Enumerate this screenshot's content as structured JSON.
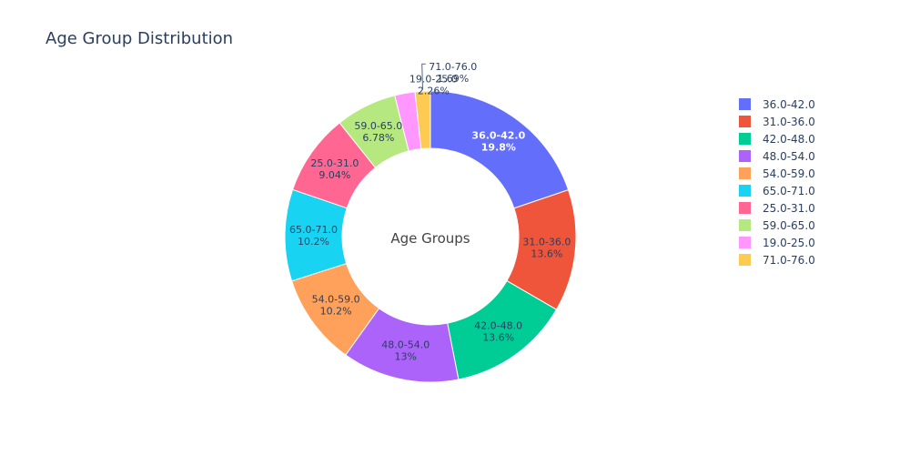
{
  "chart_data": {
    "type": "pie",
    "title": "Age Group Distribution",
    "hole_label": "Age Groups",
    "legend_position": "right",
    "slices": [
      {
        "label": "36.0-42.0",
        "percent_text": "19.8%",
        "value": 19.8,
        "color": "#636efa",
        "text_color": "light"
      },
      {
        "label": "31.0-36.0",
        "percent_text": "13.6%",
        "value": 13.56,
        "color": "#EF553B",
        "text_color": "dark"
      },
      {
        "label": "42.0-48.0",
        "percent_text": "13.6%",
        "value": 13.56,
        "color": "#00cc96",
        "text_color": "dark"
      },
      {
        "label": "48.0-54.0",
        "percent_text": "13%",
        "value": 12.99,
        "color": "#ab63fa",
        "text_color": "dark"
      },
      {
        "label": "54.0-59.0",
        "percent_text": "10.2%",
        "value": 10.17,
        "color": "#FFA15A",
        "text_color": "dark"
      },
      {
        "label": "65.0-71.0",
        "percent_text": "10.2%",
        "value": 10.17,
        "color": "#19d3f3",
        "text_color": "dark"
      },
      {
        "label": "25.0-31.0",
        "percent_text": "9.04%",
        "value": 9.04,
        "color": "#FF6692",
        "text_color": "dark"
      },
      {
        "label": "59.0-65.0",
        "percent_text": "6.78%",
        "value": 6.78,
        "color": "#B6E880",
        "text_color": "dark"
      },
      {
        "label": "19.0-25.0",
        "percent_text": "2.26%",
        "value": 2.26,
        "color": "#FF97FF",
        "text_color": "dark"
      },
      {
        "label": "71.0-76.0",
        "percent_text": "1.69%",
        "value": 1.69,
        "color": "#FECB52",
        "text_color": "dark"
      }
    ]
  }
}
